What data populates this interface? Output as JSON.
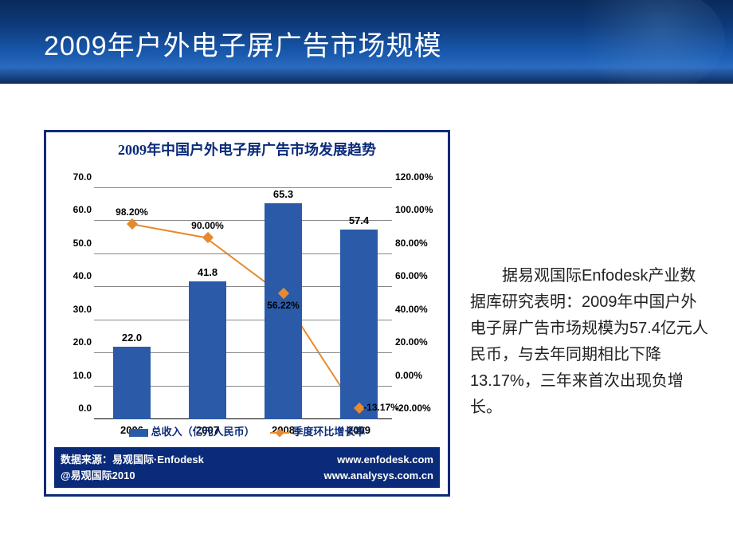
{
  "slide": {
    "title": "2009年户外电子屏广告市场规模",
    "header_bg_colors": [
      "#0a2a5a",
      "#1a5bb0",
      "#0d2a5a"
    ]
  },
  "chart": {
    "type": "bar+line",
    "title": "2009年中国户外电子屏广告市场发展趋势",
    "title_color": "#0a2a7a",
    "title_fontsize": 18,
    "border_color": "#0a2a7a",
    "background_color": "#ffffff",
    "categories": [
      "2006",
      "2007",
      "2008",
      "2009"
    ],
    "bars": {
      "label": "总收入（亿元人民币）",
      "values": [
        22.0,
        41.8,
        65.3,
        57.4
      ],
      "value_labels": [
        "22.0",
        "41.8",
        "65.3",
        "57.4"
      ],
      "color": "#2a5aa8",
      "bar_width_ratio": 0.5
    },
    "line": {
      "label": "季度环比增长率",
      "values": [
        98.2,
        90.0,
        56.22,
        -13.17
      ],
      "value_labels": [
        "98.20%",
        "90.00%",
        "56.22%",
        "-13.17%"
      ],
      "color": "#e68a2e",
      "marker": "diamond",
      "line_width": 2
    },
    "y_left": {
      "min": 0.0,
      "max": 70.0,
      "step": 10.0,
      "ticks": [
        "0.0",
        "10.0",
        "20.0",
        "30.0",
        "40.0",
        "50.0",
        "60.0",
        "70.0"
      ]
    },
    "y_right": {
      "min": -20.0,
      "max": 120.0,
      "step": 20.0,
      "ticks": [
        "-20.00%",
        "0.00%",
        "20.00%",
        "40.00%",
        "60.00%",
        "80.00%",
        "100.00%",
        "120.00%"
      ]
    },
    "grid_color": "#888888",
    "label_fontsize": 12,
    "footer": {
      "bg_color": "#0a2a7a",
      "source": "数据来源：易观国际·Enfodesk",
      "url1": "www.enfodesk.com",
      "copyright": "@易观国际2010",
      "url2": "www.analysys.com.cn"
    }
  },
  "body_text": "据易观国际Enfodesk产业数据库研究表明：2009年中国户外电子屏广告市场规模为57.4亿元人民币，与去年同期相比下降13.17%，三年来首次出现负增长。"
}
